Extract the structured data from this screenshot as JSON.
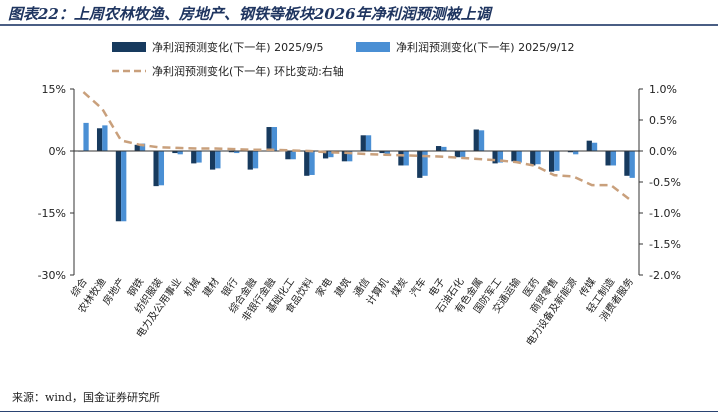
{
  "title": "图表22：上周农林牧渔、房地产、钢铁等板块2026年净利润预测被上调",
  "source": "来源：wind，国金证券研究所",
  "chart_data": {
    "type": "bar",
    "categories": [
      "综合",
      "农林牧渔",
      "房地产",
      "钢铁",
      "纺织服装",
      "电力及公用事业",
      "机械",
      "建材",
      "银行",
      "综合金融",
      "非银行金融",
      "基础化工",
      "食品饮料",
      "家电",
      "建筑",
      "通信",
      "计算机",
      "煤炭",
      "汽车",
      "电子",
      "石油石化",
      "有色金属",
      "国防军工",
      "交通运输",
      "医药",
      "商贸零售",
      "电力设备及新能源",
      "传媒",
      "轻工制造",
      "消费者服务"
    ],
    "series": [
      {
        "name": "净利润预测变化(下一年) 2025/9/5",
        "axis": "left",
        "color": "#173a5e",
        "values": [
          0,
          5.5,
          -17,
          1.5,
          -8.5,
          -0.5,
          -3,
          -4.5,
          -0.3,
          -4.5,
          5.8,
          -2,
          -6,
          -1.8,
          -2.5,
          3.8,
          -0.5,
          -3.5,
          -6.5,
          1.2,
          -1.5,
          5.2,
          -3,
          -2.5,
          -3.5,
          -5,
          -0.3,
          2.5,
          -3.5,
          -6
        ]
      },
      {
        "name": "净利润预测变化(下一年) 2025/9/12",
        "axis": "left",
        "color": "#4a8fd4",
        "values": [
          6.8,
          6.2,
          -17,
          1.8,
          -8.3,
          -0.8,
          -2.8,
          -4.2,
          -0.5,
          -4.2,
          5.8,
          -2,
          -5.8,
          -1.5,
          -2.5,
          3.8,
          -0.8,
          -3.5,
          -6,
          1,
          -1.5,
          5,
          -2.8,
          -2.8,
          -3.2,
          -4.8,
          -0.8,
          2,
          -3.5,
          -6.5
        ]
      },
      {
        "name": "净利润预测变化(下一年) 环比变动:右轴",
        "axis": "right",
        "color": "#c9a07c",
        "type": "line",
        "values": [
          0.95,
          0.68,
          0.17,
          0.1,
          0.06,
          0.05,
          0.04,
          0.04,
          0.03,
          0.02,
          0.02,
          0.01,
          0.0,
          -0.02,
          -0.03,
          -0.05,
          -0.06,
          -0.07,
          -0.08,
          -0.09,
          -0.11,
          -0.13,
          -0.15,
          -0.18,
          -0.24,
          -0.39,
          -0.41,
          -0.55,
          -0.55,
          -0.78
        ]
      }
    ],
    "y_left": {
      "min": -30,
      "max": 15,
      "ticks": [
        "15%",
        "0%",
        "-15%",
        "-30%"
      ],
      "tick_values": [
        15,
        0,
        -15,
        -30
      ]
    },
    "y_right": {
      "min": -2.0,
      "max": 1.0,
      "ticks": [
        "1.0%",
        "0.5%",
        "0.0%",
        "-0.5%",
        "-1.0%",
        "-1.5%",
        "-2.0%"
      ],
      "tick_values": [
        1.0,
        0.5,
        0.0,
        -0.5,
        -1.0,
        -1.5,
        -2.0
      ]
    },
    "legend_position": "top",
    "grid": false
  }
}
